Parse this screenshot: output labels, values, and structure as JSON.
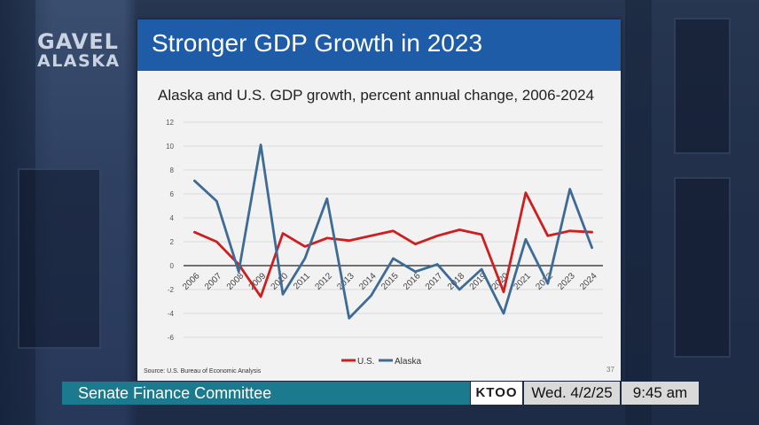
{
  "broadcaster": {
    "logo_line1": "GAVEL",
    "logo_line2": "ALASKA"
  },
  "slide": {
    "title": "Stronger GDP Growth in 2023",
    "source": "Source: U.S. Bureau of Economic Analysis",
    "page_number": "37",
    "header_color": "#1f5ca8"
  },
  "chart_data": {
    "type": "line",
    "title": "Alaska and U.S. GDP growth, percent annual change, 2006-2024",
    "categories": [
      "2006",
      "2007",
      "2008",
      "2009",
      "2010",
      "2011",
      "2012",
      "2013",
      "2014",
      "2015",
      "2016",
      "2017",
      "2018",
      "2019",
      "2020",
      "2021",
      "2022",
      "2023",
      "2024"
    ],
    "series": [
      {
        "name": "U.S.",
        "color": "#cc1f1f",
        "values": [
          2.8,
          2.0,
          0.1,
          -2.6,
          2.7,
          1.6,
          2.3,
          2.1,
          2.5,
          2.9,
          1.8,
          2.5,
          3.0,
          2.6,
          -2.2,
          6.1,
          2.5,
          2.9,
          2.8
        ]
      },
      {
        "name": "Alaska",
        "color": "#3e6b96",
        "values": [
          7.1,
          5.4,
          -0.5,
          10.1,
          -2.4,
          0.6,
          5.6,
          -4.4,
          -2.5,
          0.6,
          -0.5,
          0.1,
          -2.0,
          -0.3,
          -4.0,
          2.2,
          -1.5,
          6.4,
          1.5
        ]
      }
    ],
    "ylim": [
      -6,
      12
    ],
    "yticks": [
      "-6",
      "-4",
      "-2",
      "0",
      "2",
      "4",
      "6",
      "8",
      "10",
      "12"
    ],
    "grid": true,
    "legend_position": "bottom-center"
  },
  "lower_third": {
    "program": "Senate Finance Committee",
    "network": "KTOO",
    "date": "Wed. 4/2/25",
    "time": "9:45 am"
  }
}
